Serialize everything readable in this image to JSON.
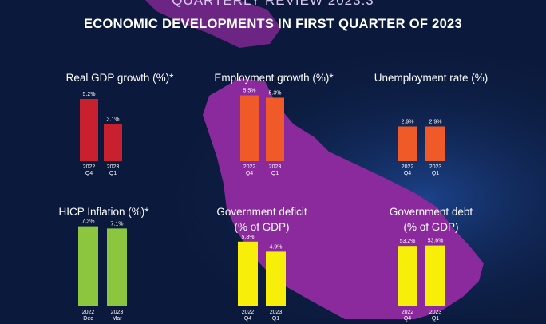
{
  "header": {
    "supertitle": "QUARTERLY REVIEW 2023:3",
    "title": "ECONOMIC DEVELOPMENTS IN FIRST QUARTER OF 2023"
  },
  "colors": {
    "background": "#0b1a3c",
    "map": "#8a2a9c",
    "gdp_bar": "#c8202e",
    "employment_bar": "#f05a28",
    "unemployment_bar": "#f05a28",
    "hicp_bar": "#8cc63f",
    "deficit_bar": "#f7ef0a",
    "debt_bar": "#f7ef0a"
  },
  "chart_data": [
    {
      "type": "bar",
      "title": "Real GDP growth (%)*",
      "categories": [
        [
          "2022",
          "Q4"
        ],
        [
          "2023",
          "Q1"
        ]
      ],
      "values": [
        5.2,
        3.1
      ],
      "value_labels": [
        "5.2%",
        "3.1%"
      ],
      "ylim": [
        0,
        6
      ]
    },
    {
      "type": "bar",
      "title": "Employment growth (%)*",
      "categories": [
        [
          "2022",
          "Q4"
        ],
        [
          "2023",
          "Q1"
        ]
      ],
      "values": [
        5.5,
        5.3
      ],
      "value_labels": [
        "5.5%",
        "5.3%"
      ],
      "ylim": [
        0,
        6
      ]
    },
    {
      "type": "bar",
      "title": "Unemployment rate (%)",
      "categories": [
        [
          "2022",
          "Q4"
        ],
        [
          "2023",
          "Q1"
        ]
      ],
      "values": [
        2.9,
        2.9
      ],
      "value_labels": [
        "2.9%",
        "2.9%"
      ],
      "ylim": [
        0,
        6
      ]
    },
    {
      "type": "bar",
      "title": "HICP Inflation (%)*",
      "categories": [
        [
          "2022",
          "Dec"
        ],
        [
          "2023",
          "Mar"
        ]
      ],
      "values": [
        7.3,
        7.1
      ],
      "value_labels": [
        "7.3%",
        "7.1%"
      ],
      "ylim": [
        0,
        8
      ]
    },
    {
      "type": "bar",
      "title": "Government deficit\n(% of GDP)",
      "categories": [
        [
          "2022",
          "Q4"
        ],
        [
          "2023",
          "Q1"
        ]
      ],
      "values": [
        5.8,
        4.9
      ],
      "value_labels": [
        "5.8%",
        "4.9%"
      ],
      "ylim": [
        0,
        9
      ]
    },
    {
      "type": "bar",
      "title": "Government debt\n(% of GDP)",
      "categories": [
        [
          "2022",
          "Q4"
        ],
        [
          "2023",
          "Q1"
        ]
      ],
      "values": [
        53.2,
        53.6
      ],
      "value_labels": [
        "53.2%",
        "53.6%"
      ],
      "ylim": [
        0,
        80
      ]
    }
  ]
}
